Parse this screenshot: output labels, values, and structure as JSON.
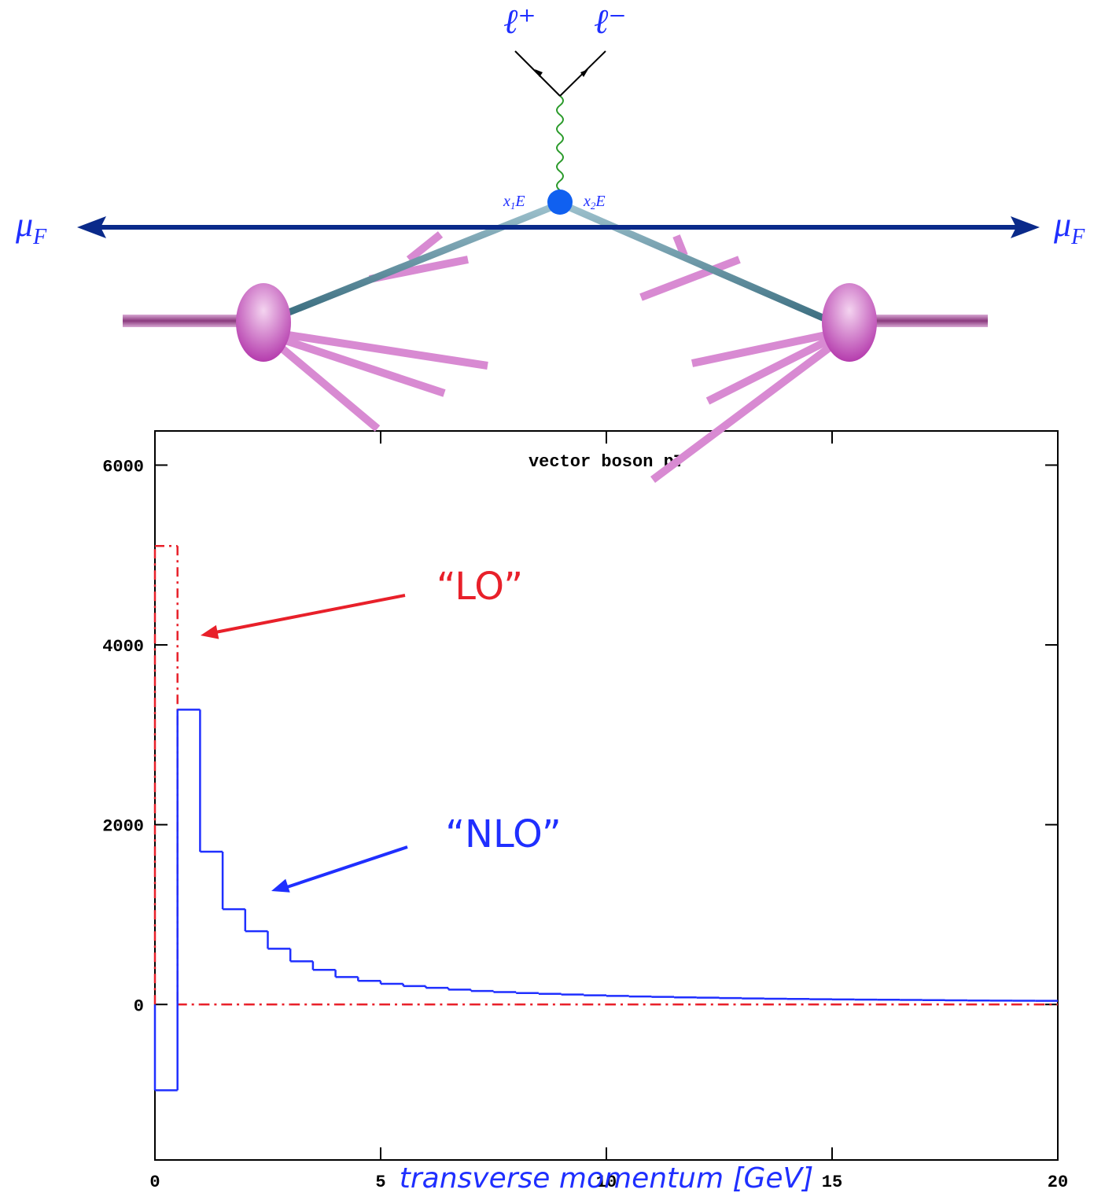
{
  "diagram": {
    "lepton_plus": "ℓ⁺",
    "lepton_minus": "ℓ⁻",
    "x1": {
      "symbol": "x",
      "sub": "1",
      "tail": "E"
    },
    "x2": {
      "symbol": "x",
      "sub": "2",
      "tail": "E"
    },
    "mu_left": {
      "symbol": "μ",
      "sub": "F"
    },
    "mu_right": {
      "symbol": "μ",
      "sub": "F"
    }
  },
  "chart_data": {
    "type": "histogram",
    "title": "vector boson pT",
    "x_label": "transverse momentum [GeV]",
    "bins": [
      0,
      0.5,
      1,
      1.5,
      2,
      2.5,
      3,
      3.5,
      4,
      4.5,
      5,
      5.5,
      6,
      6.5,
      7,
      7.5,
      8,
      8.5,
      9,
      9.5,
      10,
      10.5,
      11,
      11.5,
      12,
      12.5,
      13,
      13.5,
      14,
      14.5,
      15,
      15.5,
      16,
      16.5,
      17,
      17.5,
      18,
      18.5,
      19,
      19.5,
      20
    ],
    "series": [
      {
        "name": "“NLO”",
        "color": "#1f2fff",
        "style": "solid",
        "values": [
          -955,
          3280,
          1700,
          1060,
          815,
          620,
          480,
          385,
          305,
          262,
          230,
          205,
          185,
          165,
          150,
          138,
          127,
          118,
          110,
          102,
          95,
          89,
          84,
          79,
          75,
          71,
          67,
          64,
          61,
          58,
          56,
          54,
          52,
          50,
          48,
          46,
          44,
          43,
          42,
          41
        ]
      },
      {
        "name": "“LO”",
        "color": "#e8202a",
        "style": "dashdot",
        "values": [
          5100,
          0,
          0,
          0,
          0,
          0,
          0,
          0,
          0,
          0,
          0,
          0,
          0,
          0,
          0,
          0,
          0,
          0,
          0,
          0,
          0,
          0,
          0,
          0,
          0,
          0,
          0,
          0,
          0,
          0,
          0,
          0,
          0,
          0,
          0,
          0,
          0,
          0,
          0,
          0
        ]
      }
    ],
    "xlim": [
      0,
      20
    ],
    "xticks": [
      0,
      5,
      10,
      15,
      20
    ],
    "ylim": [
      -1730,
      6380
    ],
    "yticks": [
      0,
      2000,
      4000,
      6000
    ]
  }
}
